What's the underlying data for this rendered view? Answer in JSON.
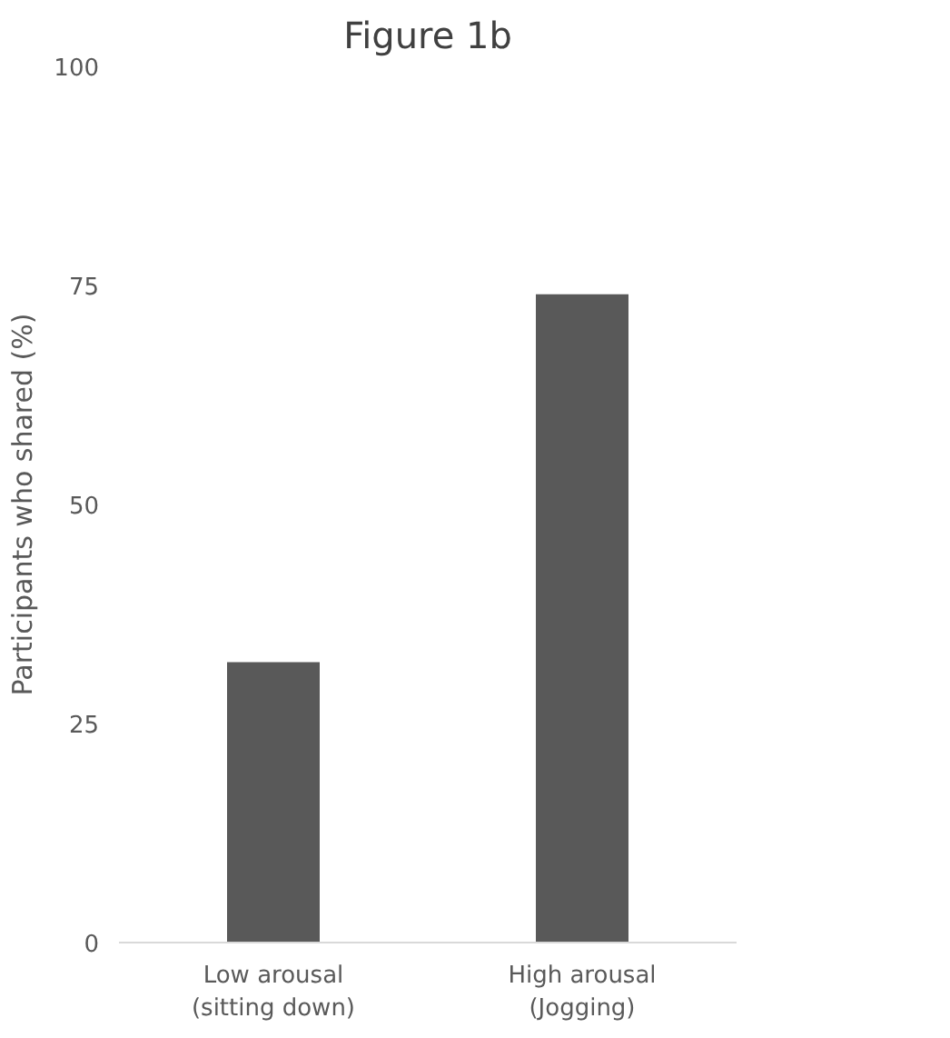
{
  "chart_data": {
    "type": "bar",
    "title": "Figure 1b",
    "ylabel": "Participants who shared (%)",
    "categories": [
      "Low arousal\n(sitting down)",
      "High arousal\n(Jogging)"
    ],
    "values": [
      32,
      74
    ],
    "color": "#595959",
    "ylim": [
      0,
      100
    ],
    "yticks": [
      0,
      25,
      50,
      75,
      100
    ],
    "grid": false
  }
}
